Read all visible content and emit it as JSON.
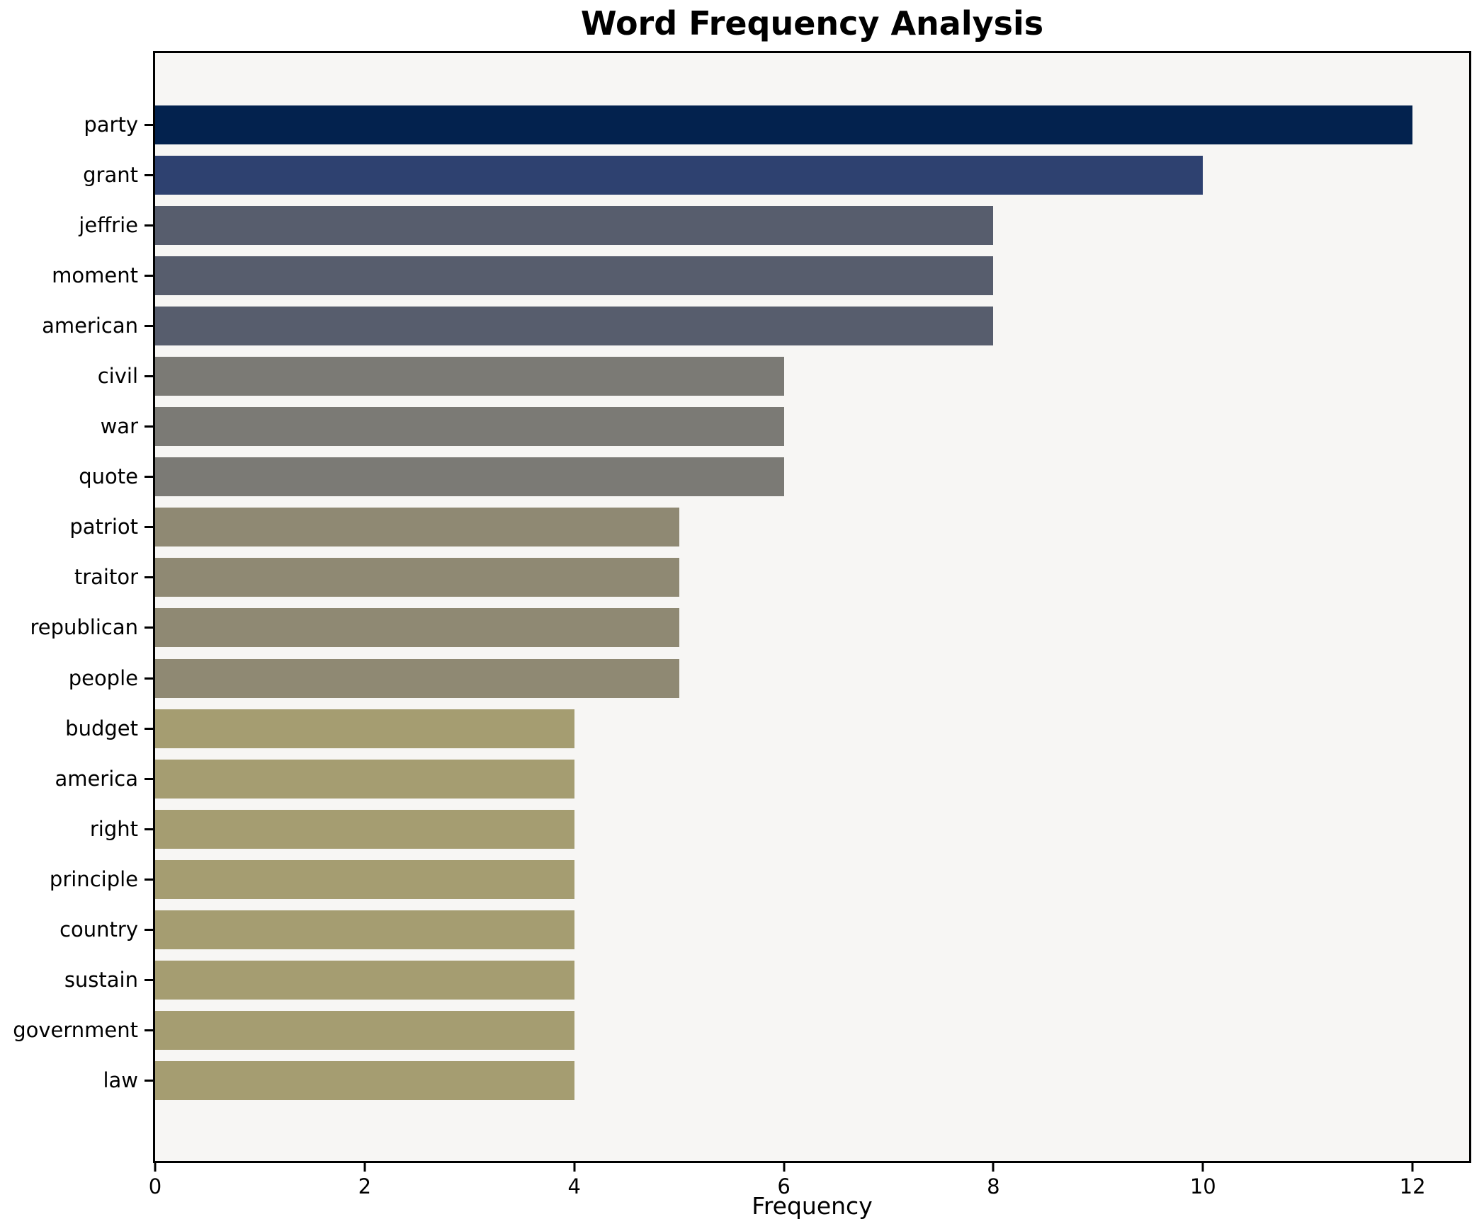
{
  "chart_data": {
    "type": "bar",
    "orientation": "horizontal",
    "title": "Word Frequency Analysis",
    "xlabel": "Frequency",
    "ylabel": "",
    "categories": [
      "party",
      "grant",
      "jeffrie",
      "moment",
      "american",
      "civil",
      "war",
      "quote",
      "patriot",
      "traitor",
      "republican",
      "people",
      "budget",
      "america",
      "right",
      "principle",
      "country",
      "sustain",
      "government",
      "law"
    ],
    "values": [
      12,
      10,
      8,
      8,
      8,
      6,
      6,
      6,
      5,
      5,
      5,
      5,
      4,
      4,
      4,
      4,
      4,
      4,
      4,
      4
    ],
    "bar_colors": [
      "#03224e",
      "#2e4170",
      "#575d6d",
      "#575d6d",
      "#575d6d",
      "#7b7a75",
      "#7b7a75",
      "#7b7a75",
      "#8f8973",
      "#8f8973",
      "#8f8973",
      "#8f8973",
      "#a59d71",
      "#a59d71",
      "#a59d71",
      "#a59d71",
      "#a59d71",
      "#a59d71",
      "#a59d71",
      "#a59d71"
    ],
    "x_ticks": [
      0,
      2,
      4,
      6,
      8,
      10,
      12
    ],
    "xlim": [
      0,
      12.54
    ],
    "grid": false,
    "legend_position": "none",
    "plot_bg": "#f7f6f4",
    "figure_bg": "#ffffff",
    "spine_color": "#000000"
  }
}
